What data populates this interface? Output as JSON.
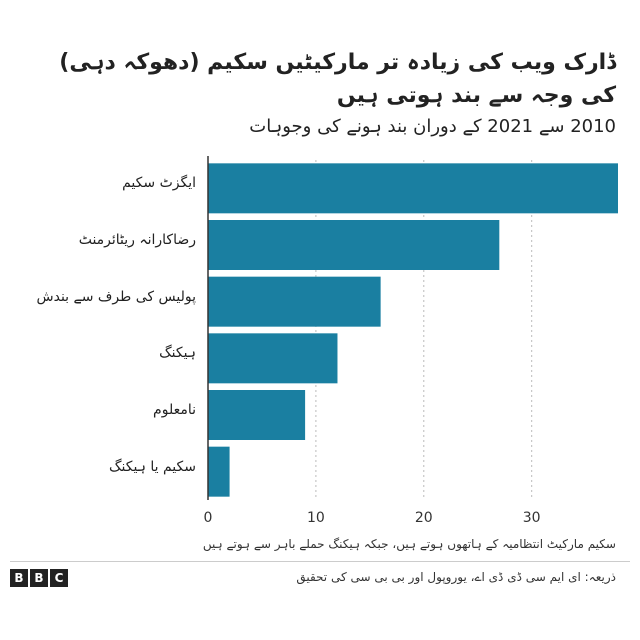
{
  "title": "ڈارک ویب کی زیادہ تر مارکیٹیں سکیم (دھوکہ دہی) کی وجہ سے بند ہوتی ہیں",
  "subtitle": "2010 سے 2021 کے دوران بند ہونے کی وجوہات",
  "footnote": "سکیم مارکیٹ انتظامیہ کے ہاتھوں ہوتے ہیں، جبکہ ہیکنگ حملے باہر سے ہوتے ہیں",
  "source": "ذریعہ: ای ایم سی ڈی ڈی اے، یوروپول اور بی بی سی کی تحقیق",
  "logo_letters": [
    "B",
    "B",
    "C"
  ],
  "chart_data": {
    "type": "bar",
    "orientation": "horizontal",
    "categories": [
      "ایگزٹ سکیم",
      "رضاکارانہ ریٹائرمنٹ",
      "پولیس کی طرف سے بندش",
      "ہیکنگ",
      "نامعلوم",
      "سکیم یا ہیکنگ"
    ],
    "values": [
      38,
      27,
      16,
      12,
      9,
      2
    ],
    "xlim": [
      0,
      38
    ],
    "xticks": [
      0,
      10,
      20,
      30
    ],
    "bar_color": "#1a7fa1",
    "grid": "vertical dotted",
    "title": "",
    "xlabel": "",
    "ylabel": ""
  }
}
